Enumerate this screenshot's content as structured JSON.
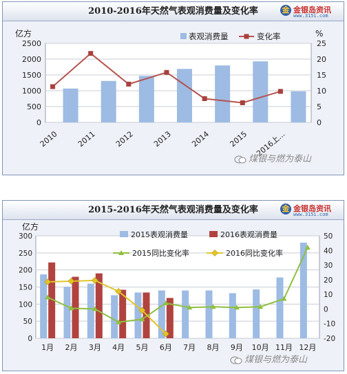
{
  "chart_data": [
    {
      "type": "bar",
      "title": "2010-2016年天然气表观消费量及变化率",
      "y_unit_left": "亿方",
      "y_unit_right": "%",
      "categories": [
        "2010",
        "2011",
        "2012",
        "2013",
        "2014",
        "2015",
        "2016上..."
      ],
      "left_ticks": [
        "0",
        "500",
        "1000",
        "1500",
        "2000",
        "2500"
      ],
      "right_ticks": [
        "0",
        "5",
        "10",
        "15",
        "20",
        "25"
      ],
      "ylim": [
        0,
        2500
      ],
      "ylim_right": [
        0,
        25
      ],
      "grid": true,
      "legend_position": "top-right",
      "series": [
        {
          "name": "表观消费量",
          "type": "bar",
          "axis": "left",
          "values": [
            1070,
            1310,
            1470,
            1690,
            1800,
            1930,
            980
          ]
        },
        {
          "name": "变化率",
          "type": "line",
          "axis": "right",
          "values": [
            11.3,
            21.8,
            12.1,
            15.8,
            7.5,
            6.2,
            9.8
          ]
        }
      ],
      "colors": {
        "bar": "#9dbbe3",
        "line": "#b5534f",
        "marker": "#a8403c"
      }
    },
    {
      "type": "bar",
      "title": "2015-2016年天然气表观消费量及变化率",
      "y_unit_left": "亿方",
      "categories": [
        "1月",
        "2月",
        "3月",
        "4月",
        "5月",
        "6月",
        "7月",
        "8月",
        "9月",
        "10月",
        "11月",
        "12月"
      ],
      "left_ticks": [
        "0",
        "50",
        "100",
        "150",
        "200",
        "250",
        "300"
      ],
      "right_ticks": [
        "-20",
        "-10",
        "0",
        "10",
        "20",
        "30",
        "40",
        "50"
      ],
      "ylim": [
        0,
        300
      ],
      "ylim_right": [
        -20,
        50
      ],
      "grid": true,
      "legend_position": "top",
      "series": [
        {
          "name": "2015表观消费量",
          "type": "bar",
          "axis": "left",
          "values": [
            187,
            151,
            160,
            126,
            134,
            140,
            140,
            140,
            132,
            143,
            178,
            280
          ]
        },
        {
          "name": "2016表观消费量",
          "type": "bar",
          "axis": "left",
          "values": [
            222,
            180,
            190,
            142,
            134,
            118,
            null,
            null,
            null,
            null,
            null,
            null
          ]
        },
        {
          "name": "2015同比变化率",
          "type": "line",
          "axis": "right",
          "values": [
            8,
            0.5,
            0,
            -9,
            -7,
            4,
            1,
            1.5,
            1,
            1.5,
            7,
            42
          ]
        },
        {
          "name": "2016同比变化率",
          "type": "line",
          "axis": "right",
          "values": [
            18.5,
            19,
            19.5,
            12,
            -1,
            -17,
            null,
            null,
            null,
            null,
            null,
            null
          ]
        }
      ],
      "colors": {
        "bar2015": "#9dbbe3",
        "bar2016": "#b0433f",
        "line2015": "#8fbf3f",
        "line2016": "#e3c52a"
      }
    }
  ],
  "logo": {
    "mark": "金",
    "brand": "金银岛资讯",
    "url": "www.315i.com"
  },
  "watermark": "煤银与燃为泰山"
}
